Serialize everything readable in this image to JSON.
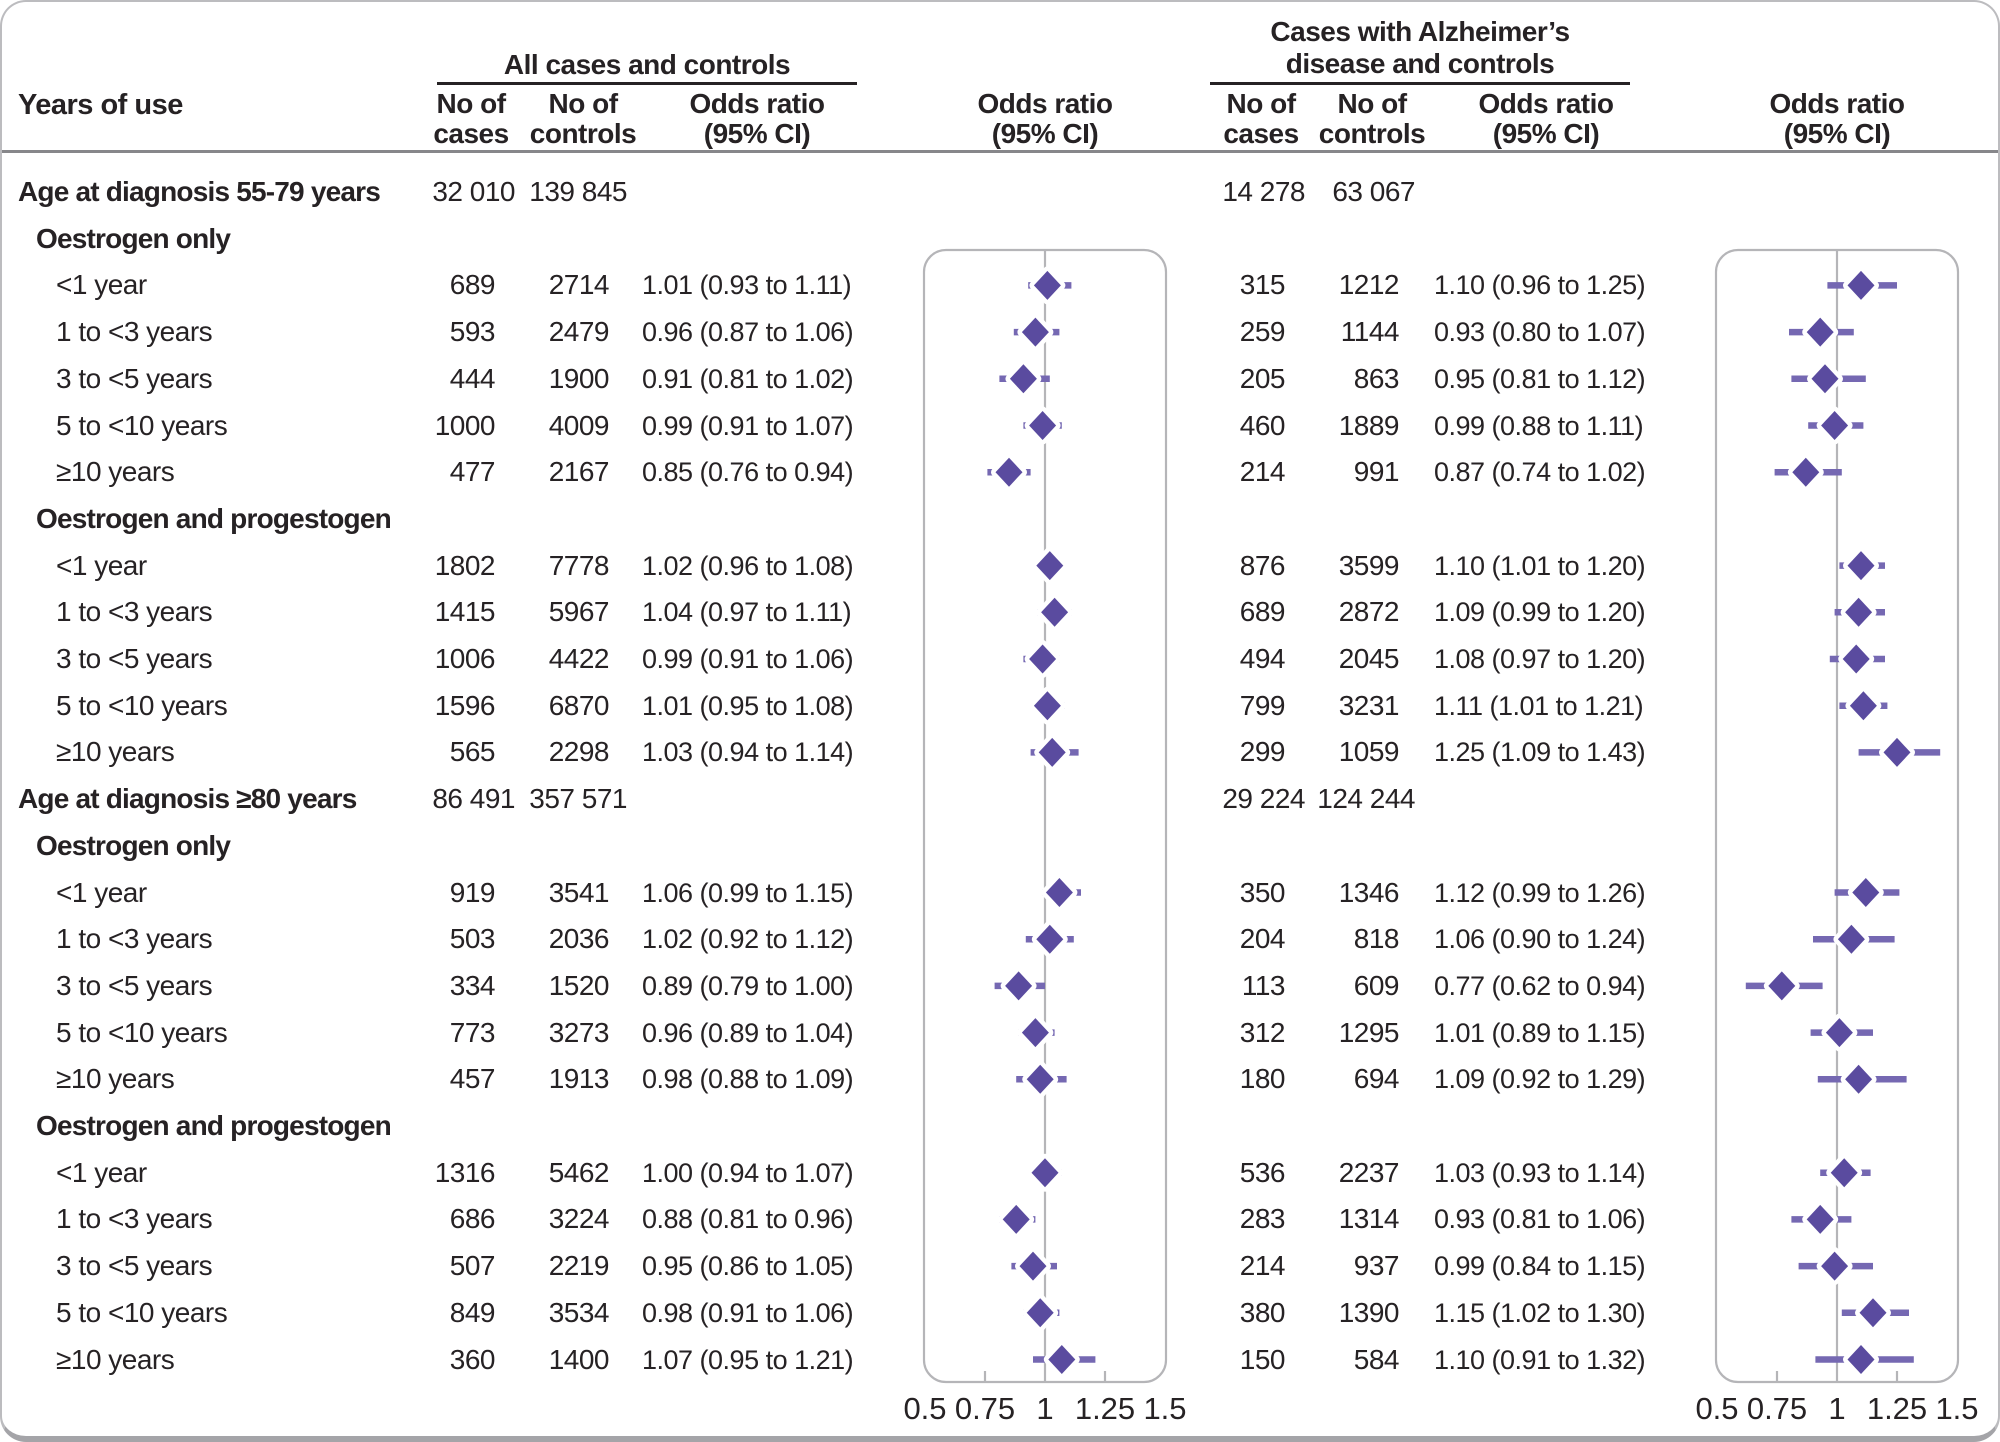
{
  "header": {
    "row_header": "Years of use",
    "left_group": "All cases and controls",
    "right_group_line1": "Cases with Alzheimer’s",
    "right_group_line2": "disease and controls",
    "no_of": "No of",
    "cases": "cases",
    "controls": "controls",
    "odds_ratio": "Odds ratio",
    "ci": "(95% CI)"
  },
  "chart_data": {
    "type": "forest",
    "panels": [
      {
        "key": "all",
        "title": "All cases and controls"
      },
      {
        "key": "alz",
        "title": "Cases with Alzheimer’s disease and controls"
      }
    ],
    "axis": {
      "range": [
        0.5,
        1.5
      ],
      "reference": 1,
      "ticks": [
        0.5,
        0.75,
        1,
        1.25,
        1.5
      ],
      "tick_labels": [
        "0.5",
        "0.75",
        "1",
        "1.25",
        "1.5"
      ],
      "minor_tick_values": [
        0.75,
        1.25
      ]
    },
    "colors": {
      "marker": "#5a4b9f",
      "ci_line": "#7568b2",
      "panel_line": "#b5b5b8",
      "text": "#262224"
    },
    "rows": [
      {
        "type": "section",
        "label": "Age at diagnosis 55-79 years",
        "all_cases": "32 010",
        "all_controls": "139 845",
        "alz_cases": "14 278",
        "alz_controls": "63 067"
      },
      {
        "type": "subsection",
        "label": "Oestrogen only"
      },
      {
        "type": "data",
        "label": "<1 year",
        "all": {
          "cases": "689",
          "controls": "2714",
          "or": 1.01,
          "lo": 0.93,
          "hi": 1.11,
          "text": "1.01 (0.93 to 1.11)"
        },
        "alz": {
          "cases": "315",
          "controls": "1212",
          "or": 1.1,
          "lo": 0.96,
          "hi": 1.25,
          "text": "1.10 (0.96 to 1.25)"
        }
      },
      {
        "type": "data",
        "label": "1 to <3 years",
        "all": {
          "cases": "593",
          "controls": "2479",
          "or": 0.96,
          "lo": 0.87,
          "hi": 1.06,
          "text": "0.96 (0.87 to 1.06)"
        },
        "alz": {
          "cases": "259",
          "controls": "1144",
          "or": 0.93,
          "lo": 0.8,
          "hi": 1.07,
          "text": "0.93 (0.80 to 1.07)"
        }
      },
      {
        "type": "data",
        "label": "3 to <5 years",
        "all": {
          "cases": "444",
          "controls": "1900",
          "or": 0.91,
          "lo": 0.81,
          "hi": 1.02,
          "text": "0.91 (0.81 to 1.02)"
        },
        "alz": {
          "cases": "205",
          "controls": "863",
          "or": 0.95,
          "lo": 0.81,
          "hi": 1.12,
          "text": "0.95 (0.81 to 1.12)"
        }
      },
      {
        "type": "data",
        "label": "5 to <10 years",
        "all": {
          "cases": "1000",
          "controls": "4009",
          "or": 0.99,
          "lo": 0.91,
          "hi": 1.07,
          "text": "0.99 (0.91 to 1.07)"
        },
        "alz": {
          "cases": "460",
          "controls": "1889",
          "or": 0.99,
          "lo": 0.88,
          "hi": 1.11,
          "text": "0.99 (0.88 to 1.11)"
        }
      },
      {
        "type": "data",
        "label": "≥10 years",
        "all": {
          "cases": "477",
          "controls": "2167",
          "or": 0.85,
          "lo": 0.76,
          "hi": 0.94,
          "text": "0.85 (0.76 to 0.94)"
        },
        "alz": {
          "cases": "214",
          "controls": "991",
          "or": 0.87,
          "lo": 0.74,
          "hi": 1.02,
          "text": "0.87 (0.74 to 1.02)"
        }
      },
      {
        "type": "subsection",
        "label": "Oestrogen and progestogen"
      },
      {
        "type": "data",
        "label": "<1 year",
        "all": {
          "cases": "1802",
          "controls": "7778",
          "or": 1.02,
          "lo": 0.96,
          "hi": 1.08,
          "text": "1.02 (0.96 to 1.08)"
        },
        "alz": {
          "cases": "876",
          "controls": "3599",
          "or": 1.1,
          "lo": 1.01,
          "hi": 1.2,
          "text": "1.10 (1.01 to 1.20)"
        }
      },
      {
        "type": "data",
        "label": "1 to <3 years",
        "all": {
          "cases": "1415",
          "controls": "5967",
          "or": 1.04,
          "lo": 0.97,
          "hi": 1.11,
          "text": "1.04 (0.97 to 1.11)"
        },
        "alz": {
          "cases": "689",
          "controls": "2872",
          "or": 1.09,
          "lo": 0.99,
          "hi": 1.2,
          "text": "1.09 (0.99 to 1.20)"
        }
      },
      {
        "type": "data",
        "label": "3 to <5 years",
        "all": {
          "cases": "1006",
          "controls": "4422",
          "or": 0.99,
          "lo": 0.91,
          "hi": 1.06,
          "text": "0.99 (0.91 to 1.06)"
        },
        "alz": {
          "cases": "494",
          "controls": "2045",
          "or": 1.08,
          "lo": 0.97,
          "hi": 1.2,
          "text": "1.08 (0.97 to 1.20)"
        }
      },
      {
        "type": "data",
        "label": "5 to <10 years",
        "all": {
          "cases": "1596",
          "controls": "6870",
          "or": 1.01,
          "lo": 0.95,
          "hi": 1.08,
          "text": "1.01 (0.95 to 1.08)"
        },
        "alz": {
          "cases": "799",
          "controls": "3231",
          "or": 1.11,
          "lo": 1.01,
          "hi": 1.21,
          "text": "1.11 (1.01 to 1.21)"
        }
      },
      {
        "type": "data",
        "label": "≥10 years",
        "all": {
          "cases": "565",
          "controls": "2298",
          "or": 1.03,
          "lo": 0.94,
          "hi": 1.14,
          "text": "1.03 (0.94 to 1.14)"
        },
        "alz": {
          "cases": "299",
          "controls": "1059",
          "or": 1.25,
          "lo": 1.09,
          "hi": 1.43,
          "text": "1.25 (1.09 to 1.43)"
        }
      },
      {
        "type": "section",
        "label": "Age at diagnosis ≥80 years",
        "all_cases": "86 491",
        "all_controls": "357 571",
        "alz_cases": "29 224",
        "alz_controls": "124 244"
      },
      {
        "type": "subsection",
        "label": "Oestrogen only"
      },
      {
        "type": "data",
        "label": "<1 year",
        "all": {
          "cases": "919",
          "controls": "3541",
          "or": 1.06,
          "lo": 0.99,
          "hi": 1.15,
          "text": "1.06 (0.99 to 1.15)"
        },
        "alz": {
          "cases": "350",
          "controls": "1346",
          "or": 1.12,
          "lo": 0.99,
          "hi": 1.26,
          "text": "1.12 (0.99 to 1.26)"
        }
      },
      {
        "type": "data",
        "label": "1 to <3 years",
        "all": {
          "cases": "503",
          "controls": "2036",
          "or": 1.02,
          "lo": 0.92,
          "hi": 1.12,
          "text": "1.02 (0.92 to 1.12)"
        },
        "alz": {
          "cases": "204",
          "controls": "818",
          "or": 1.06,
          "lo": 0.9,
          "hi": 1.24,
          "text": "1.06 (0.90 to 1.24)"
        }
      },
      {
        "type": "data",
        "label": "3 to <5 years",
        "all": {
          "cases": "334",
          "controls": "1520",
          "or": 0.89,
          "lo": 0.79,
          "hi": 1.0,
          "text": "0.89 (0.79 to 1.00)"
        },
        "alz": {
          "cases": "113",
          "controls": "609",
          "or": 0.77,
          "lo": 0.62,
          "hi": 0.94,
          "text": "0.77 (0.62 to 0.94)"
        }
      },
      {
        "type": "data",
        "label": "5 to <10 years",
        "all": {
          "cases": "773",
          "controls": "3273",
          "or": 0.96,
          "lo": 0.89,
          "hi": 1.04,
          "text": "0.96 (0.89 to 1.04)"
        },
        "alz": {
          "cases": "312",
          "controls": "1295",
          "or": 1.01,
          "lo": 0.89,
          "hi": 1.15,
          "text": "1.01 (0.89 to 1.15)"
        }
      },
      {
        "type": "data",
        "label": "≥10 years",
        "all": {
          "cases": "457",
          "controls": "1913",
          "or": 0.98,
          "lo": 0.88,
          "hi": 1.09,
          "text": "0.98 (0.88 to 1.09)"
        },
        "alz": {
          "cases": "180",
          "controls": "694",
          "or": 1.09,
          "lo": 0.92,
          "hi": 1.29,
          "text": "1.09 (0.92 to 1.29)"
        }
      },
      {
        "type": "subsection",
        "label": "Oestrogen and progestogen"
      },
      {
        "type": "data",
        "label": "<1 year",
        "all": {
          "cases": "1316",
          "controls": "5462",
          "or": 1.0,
          "lo": 0.94,
          "hi": 1.07,
          "text": "1.00 (0.94 to 1.07)"
        },
        "alz": {
          "cases": "536",
          "controls": "2237",
          "or": 1.03,
          "lo": 0.93,
          "hi": 1.14,
          "text": "1.03 (0.93 to 1.14)"
        }
      },
      {
        "type": "data",
        "label": "1 to <3 years",
        "all": {
          "cases": "686",
          "controls": "3224",
          "or": 0.88,
          "lo": 0.81,
          "hi": 0.96,
          "text": "0.88 (0.81 to 0.96)"
        },
        "alz": {
          "cases": "283",
          "controls": "1314",
          "or": 0.93,
          "lo": 0.81,
          "hi": 1.06,
          "text": "0.93 (0.81 to 1.06)"
        }
      },
      {
        "type": "data",
        "label": "3 to <5 years",
        "all": {
          "cases": "507",
          "controls": "2219",
          "or": 0.95,
          "lo": 0.86,
          "hi": 1.05,
          "text": "0.95 (0.86 to 1.05)"
        },
        "alz": {
          "cases": "214",
          "controls": "937",
          "or": 0.99,
          "lo": 0.84,
          "hi": 1.15,
          "text": "0.99 (0.84 to 1.15)"
        }
      },
      {
        "type": "data",
        "label": "5 to <10 years",
        "all": {
          "cases": "849",
          "controls": "3534",
          "or": 0.98,
          "lo": 0.91,
          "hi": 1.06,
          "text": "0.98 (0.91 to 1.06)"
        },
        "alz": {
          "cases": "380",
          "controls": "1390",
          "or": 1.15,
          "lo": 1.02,
          "hi": 1.3,
          "text": "1.15 (1.02 to 1.30)"
        }
      },
      {
        "type": "data",
        "label": "≥10 years",
        "all": {
          "cases": "360",
          "controls": "1400",
          "or": 1.07,
          "lo": 0.95,
          "hi": 1.21,
          "text": "1.07 (0.95 to 1.21)"
        },
        "alz": {
          "cases": "150",
          "controls": "584",
          "or": 1.1,
          "lo": 0.91,
          "hi": 1.32,
          "text": "1.10 (0.91 to 1.32)"
        }
      }
    ]
  }
}
